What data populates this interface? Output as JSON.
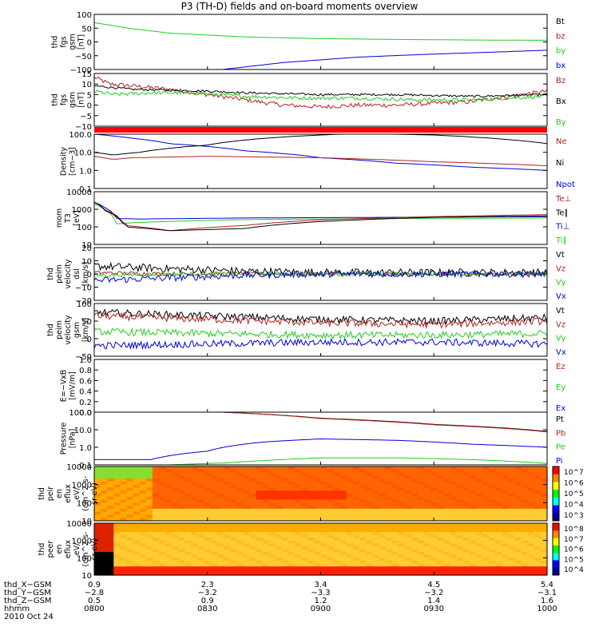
{
  "title": "P3 (TH-D) fields and on-board moments overview",
  "colors": {
    "black": "#000000",
    "red": "#b22222",
    "green": "#22cc22",
    "blue": "#0000dd",
    "divider": "#ff0000"
  },
  "chart_data": [
    {
      "type": "line",
      "name": "fgs_gsm",
      "ylabel": [
        "thd",
        "fgs",
        "gsm",
        "[nT]"
      ],
      "ylim": [
        -100,
        100
      ],
      "yticks": [
        "100",
        "50",
        "0",
        "−50",
        "−100"
      ],
      "legend": [
        {
          "label": "Bt",
          "color": "#000000"
        },
        {
          "label": "bz",
          "color": "#b22222"
        },
        {
          "label": "by",
          "color": "#22cc22"
        },
        {
          "label": "bx",
          "color": "#0000dd"
        }
      ],
      "series": [
        {
          "color": "#22cc22",
          "x": [
            0,
            10,
            20,
            40,
            60,
            80,
            100,
            120
          ],
          "y": [
            70,
            48,
            32,
            18,
            12,
            9,
            7,
            6
          ]
        },
        {
          "color": "#0000dd",
          "x": [
            34,
            50,
            70,
            90,
            110,
            120
          ],
          "y": [
            -100,
            -75,
            -55,
            -44,
            -35,
            -30
          ]
        }
      ]
    },
    {
      "type": "line",
      "name": "fgs_gsm_zoom",
      "ylabel": [
        "thd",
        "fgs",
        "gsm",
        "[nT]"
      ],
      "ylim": [
        -15,
        15
      ],
      "yticks": [
        "15",
        "10",
        "5",
        "0",
        "−5",
        "−10"
      ],
      "legend": [
        {
          "label": "Bz",
          "color": "#b22222"
        },
        {
          "label": "Bx",
          "color": "#000000"
        },
        {
          "label": "By",
          "color": "#22cc22"
        }
      ],
      "series": [
        {
          "color": "#b22222",
          "noise": 1.2,
          "x": [
            0,
            4,
            10,
            20,
            30,
            40,
            50,
            60,
            70,
            80,
            90,
            100,
            110,
            120
          ],
          "y": [
            13,
            9,
            8,
            6,
            3,
            0,
            -3,
            -4,
            -3,
            -3,
            -2,
            -1,
            2,
            5
          ]
        },
        {
          "color": "#000000",
          "noise": 0.6,
          "x": [
            0,
            10,
            20,
            30,
            40,
            50,
            60,
            70,
            80,
            90,
            100,
            110,
            120
          ],
          "y": [
            8,
            6,
            5.5,
            5,
            4,
            3.5,
            3,
            3,
            3,
            2.5,
            2,
            2.5,
            3
          ]
        },
        {
          "color": "#22cc22",
          "noise": 1.0,
          "x": [
            0,
            5,
            15,
            25,
            40,
            55,
            70,
            85,
            100,
            110,
            120
          ],
          "y": [
            5,
            3,
            4,
            4,
            2,
            1,
            1,
            0,
            0,
            1,
            2
          ]
        }
      ]
    },
    {
      "type": "line",
      "name": "density",
      "log": true,
      "ylabel": [
        "Density",
        "[cm−3]"
      ],
      "ylim": [
        0.1,
        100
      ],
      "yticks": [
        "100.0",
        "10.0",
        "1.0",
        "0.1"
      ],
      "legend": [
        {
          "label": "Ne",
          "color": "#b22222"
        },
        {
          "label": "Ni",
          "color": "#000000"
        },
        {
          "label": "Npot",
          "color": "#0000dd"
        }
      ],
      "series": [
        {
          "color": "#0000dd",
          "x": [
            0,
            10,
            20,
            40,
            60,
            80,
            100,
            120
          ],
          "y": [
            100,
            60,
            30,
            12,
            5,
            2.5,
            1.5,
            1.0
          ]
        },
        {
          "color": "#b22222",
          "x": [
            0,
            5,
            10,
            30,
            60,
            90,
            120
          ],
          "y": [
            6,
            4,
            5,
            6,
            5,
            3,
            1.8
          ]
        },
        {
          "color": "#000000",
          "x": [
            0,
            5,
            12,
            30,
            50,
            70,
            90,
            110,
            120
          ],
          "y": [
            10,
            7,
            10,
            25,
            70,
            110,
            90,
            50,
            30
          ]
        }
      ]
    },
    {
      "type": "line",
      "name": "temperature",
      "log": true,
      "ylabel": [
        "mom",
        "T3",
        "[eV]"
      ],
      "ylim": [
        10,
        10000
      ],
      "yticks": [
        "10000",
        "1000",
        "100",
        "10"
      ],
      "legend": [
        {
          "label": "Te⊥",
          "color": "#b22222"
        },
        {
          "label": "Te∥",
          "color": "#000000"
        },
        {
          "label": "Ti⊥",
          "color": "#0000dd"
        },
        {
          "label": "Ti∥",
          "color": "#22cc22"
        }
      ],
      "series": [
        {
          "color": "#0000dd",
          "x": [
            0,
            3,
            6,
            12,
            40,
            80,
            120
          ],
          "y": [
            2500,
            1200,
            300,
            280,
            320,
            350,
            380
          ]
        },
        {
          "color": "#22cc22",
          "x": [
            0,
            3,
            6,
            12,
            40,
            80,
            120
          ],
          "y": [
            2000,
            900,
            150,
            180,
            260,
            300,
            320
          ]
        },
        {
          "color": "#b22222",
          "x": [
            0,
            3,
            8,
            20,
            40,
            60,
            90,
            120
          ],
          "y": [
            2500,
            900,
            120,
            60,
            120,
            250,
            380,
            500
          ]
        },
        {
          "color": "#000000",
          "x": [
            0,
            3,
            8,
            20,
            40,
            60,
            90,
            120
          ],
          "y": [
            2500,
            800,
            100,
            60,
            80,
            200,
            350,
            420
          ]
        }
      ]
    },
    {
      "type": "line",
      "name": "peim_velocity_dsl",
      "ylabel": [
        "thd",
        "peim",
        "velocity",
        "dsl",
        "[km/s]"
      ],
      "ylim": [
        -20,
        20
      ],
      "yticks": [
        "20",
        "10",
        "0",
        "−10",
        "−20"
      ],
      "legend": [
        {
          "label": "Vt",
          "color": "#000000"
        },
        {
          "label": "Vz",
          "color": "#b22222"
        },
        {
          "label": "Vy",
          "color": "#22cc22"
        },
        {
          "label": "Vx",
          "color": "#0000dd"
        }
      ],
      "series": [
        {
          "color": "#000000",
          "noise": 3,
          "x": [
            0,
            20,
            40,
            60,
            120
          ],
          "y": [
            6,
            4,
            2,
            1,
            1
          ]
        },
        {
          "color": "#b22222",
          "noise": 1.5,
          "x": [
            0,
            20,
            40,
            120
          ],
          "y": [
            1,
            0,
            0,
            0
          ]
        },
        {
          "color": "#22cc22",
          "noise": 1.5,
          "x": [
            0,
            20,
            40,
            120
          ],
          "y": [
            -1,
            0,
            0,
            0
          ]
        },
        {
          "color": "#0000dd",
          "noise": 2.5,
          "x": [
            0,
            20,
            40,
            60,
            120
          ],
          "y": [
            -5,
            -3,
            -1,
            0,
            0
          ]
        }
      ]
    },
    {
      "type": "line",
      "name": "peim_velocity_gsm",
      "ylabel": [
        "thd",
        "peim",
        "velocity",
        "gsm",
        "[km/s]"
      ],
      "ylim": [
        -50,
        100
      ],
      "yticks": [
        "100",
        "50",
        "0",
        "−50"
      ],
      "legend": [
        {
          "label": "Vt",
          "color": "#000000"
        },
        {
          "label": "Vz",
          "color": "#b22222"
        },
        {
          "label": "Vy",
          "color": "#22cc22"
        },
        {
          "label": "Vx",
          "color": "#0000dd"
        }
      ],
      "series": [
        {
          "color": "#000000",
          "noise": 10,
          "x": [
            0,
            30,
            60,
            90,
            120
          ],
          "y": [
            75,
            65,
            55,
            50,
            60
          ]
        },
        {
          "color": "#b22222",
          "noise": 10,
          "x": [
            0,
            30,
            60,
            90,
            120
          ],
          "y": [
            65,
            55,
            45,
            40,
            50
          ]
        },
        {
          "color": "#22cc22",
          "noise": 10,
          "x": [
            0,
            30,
            60,
            90,
            120
          ],
          "y": [
            20,
            15,
            10,
            10,
            15
          ]
        },
        {
          "color": "#0000dd",
          "noise": 10,
          "x": [
            0,
            30,
            60,
            90,
            120
          ],
          "y": [
            -20,
            -15,
            -10,
            -10,
            -15
          ]
        }
      ]
    },
    {
      "type": "line",
      "name": "e_field",
      "ylabel": [
        "E=−VxB",
        "[mV/m]"
      ],
      "ylim": [
        0,
        1
      ],
      "yticks": [
        "1.0",
        "0.8",
        "0.6",
        "0.4",
        "0.2",
        "0.0"
      ],
      "legend": [
        {
          "label": "Ez",
          "color": "#b22222"
        },
        {
          "label": "Ey",
          "color": "#22cc22"
        },
        {
          "label": "Ex",
          "color": "#0000dd"
        }
      ],
      "series": []
    },
    {
      "type": "line",
      "name": "pressure",
      "log": true,
      "ylabel": [
        "Pressure",
        "[nPa]"
      ],
      "ylim": [
        0.1,
        100
      ],
      "yticks": [
        "100.0",
        "10.0",
        "1.0",
        "0.1"
      ],
      "legend": [
        {
          "label": "Pt",
          "color": "#000000"
        },
        {
          "label": "Pb",
          "color": "#b22222"
        },
        {
          "label": "Pe",
          "color": "#22cc22"
        },
        {
          "label": "Pi",
          "color": "#0000dd"
        }
      ],
      "series": [
        {
          "color": "#000000",
          "x": [
            34,
            60,
            90,
            120
          ],
          "y": [
            100,
            45,
            20,
            8
          ]
        },
        {
          "color": "#b22222",
          "x": [
            34,
            60,
            90,
            120
          ],
          "y": [
            100,
            43,
            19,
            7.5
          ]
        },
        {
          "color": "#0000dd",
          "x": [
            0,
            15,
            30,
            45,
            60,
            80,
            100,
            120
          ],
          "y": [
            0.2,
            0.2,
            0.6,
            2,
            3,
            2.5,
            1.5,
            1.0
          ]
        },
        {
          "color": "#22cc22",
          "x": [
            0,
            20,
            35,
            50,
            60,
            80,
            100,
            120
          ],
          "y": [
            0.1,
            0.1,
            0.13,
            0.2,
            0.25,
            0.25,
            0.2,
            0.12
          ]
        }
      ]
    },
    {
      "type": "heatmap",
      "name": "peir_eflux",
      "log": true,
      "ylabel": [
        "thd",
        "peir",
        "en",
        "eflux",
        "eV/",
        "(cm^2-s-",
        "sr-eV)"
      ],
      "ylim": [
        10,
        10000
      ],
      "yticks": [
        "10000",
        "1000",
        "100",
        "10"
      ],
      "colorbar": {
        "labels": [
          "10^7",
          "10^6",
          "10^5",
          "10^4",
          "10^3"
        ]
      }
    },
    {
      "type": "heatmap",
      "name": "peer_eflux",
      "log": true,
      "ylabel": [
        "thd",
        "peer",
        "en",
        "eflux",
        "eV/",
        "(cm^2-s-",
        "sr-eV)"
      ],
      "ylim": [
        10,
        10000
      ],
      "yticks": [
        "10000",
        "1000",
        "100",
        "10"
      ],
      "colorbar": {
        "labels": [
          "10^8",
          "10^7",
          "10^6",
          "10^5",
          "10^4"
        ]
      }
    }
  ],
  "xaxis": {
    "row_labels": [
      "thd_X−GSM",
      "thd_Y−GSM",
      "thd_Z−GSM",
      "hhmm",
      "2010 Oct 24"
    ],
    "columns": [
      {
        "x": 0,
        "vals": [
          "0.9",
          "−2.8",
          "0.5",
          "0800"
        ]
      },
      {
        "x": 30,
        "vals": [
          "2.3",
          "−3.2",
          "0.9",
          "0830"
        ]
      },
      {
        "x": 60,
        "vals": [
          "3.4",
          "−3.3",
          "1.2",
          "0900"
        ]
      },
      {
        "x": 90,
        "vals": [
          "4.5",
          "−3.2",
          "1.4",
          "0930"
        ]
      },
      {
        "x": 120,
        "vals": [
          "5.4",
          "−3.1",
          "1.6",
          "1000"
        ]
      }
    ]
  }
}
